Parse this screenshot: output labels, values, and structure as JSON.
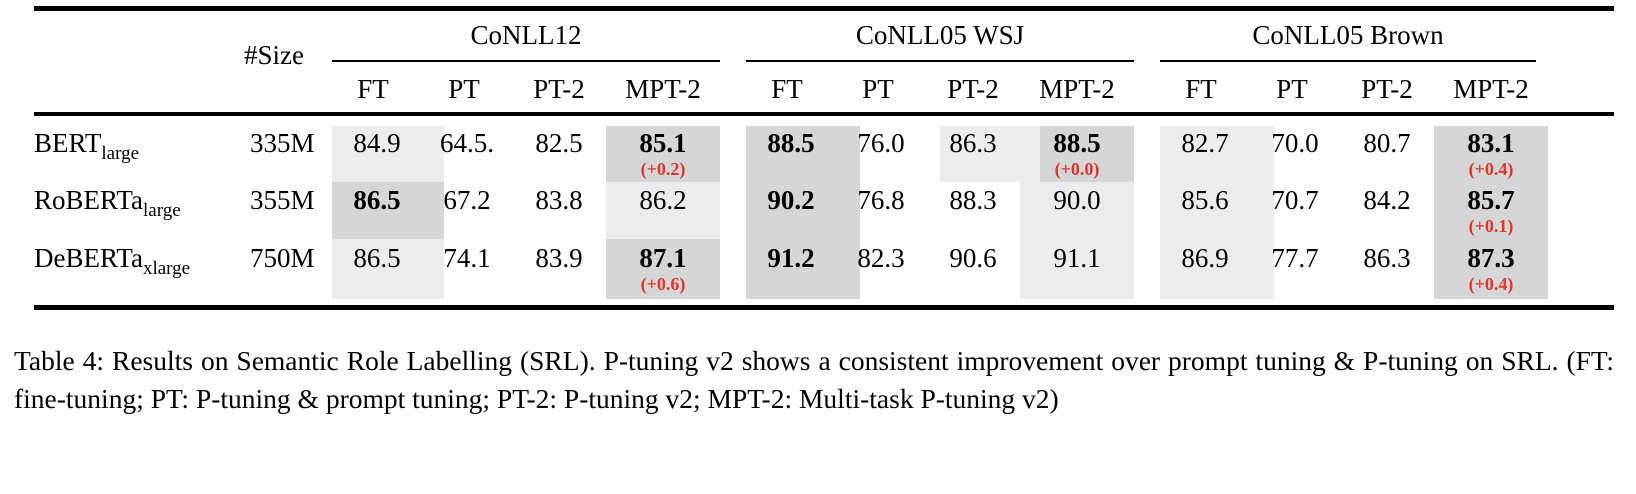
{
  "table": {
    "size_header": "#Size",
    "groups": [
      {
        "name": "CoNLL12",
        "columns": [
          "FT",
          "PT",
          "PT-2",
          "MPT-2"
        ]
      },
      {
        "name": "CoNLL05 WSJ",
        "columns": [
          "FT",
          "PT",
          "PT-2",
          "MPT-2"
        ]
      },
      {
        "name": "CoNLL05 Brown",
        "columns": [
          "FT",
          "PT",
          "PT-2",
          "MPT-2"
        ]
      }
    ],
    "rows": [
      {
        "model": "BERT",
        "model_sub": "large",
        "size": "335M",
        "values": [
          "84.9",
          "64.5.",
          "82.5",
          "85.1",
          "88.5",
          "76.0",
          "86.3",
          "88.5",
          "82.7",
          "70.0",
          "80.7",
          "83.1"
        ],
        "deltas": [
          "",
          "",
          "",
          "(+0.2)",
          "",
          "",
          "",
          "(+0.0)",
          "",
          "",
          "",
          "(+0.4)"
        ]
      },
      {
        "model": "RoBERTa",
        "model_sub": "large",
        "size": "355M",
        "values": [
          "86.5",
          "67.2",
          "83.8",
          "86.2",
          "90.2",
          "76.8",
          "88.3",
          "90.0",
          "85.6",
          "70.7",
          "84.2",
          "85.7"
        ],
        "deltas": [
          "",
          "",
          "",
          "",
          "",
          "",
          "",
          "",
          "",
          "",
          "",
          "(+0.1)"
        ]
      },
      {
        "model": "DeBERTa",
        "model_sub": "xlarge",
        "size": "750M",
        "values": [
          "86.5",
          "74.1",
          "83.9",
          "87.1",
          "91.2",
          "82.3",
          "90.6",
          "91.1",
          "86.9",
          "77.7",
          "86.3",
          "87.3"
        ],
        "deltas": [
          "",
          "",
          "",
          "(+0.6)",
          "",
          "",
          "",
          "",
          "",
          "",
          "",
          "(+0.4)"
        ]
      }
    ]
  },
  "caption": "Table 4: Results on Semantic Role Labelling (SRL). P-tuning v2 shows a consistent improvement over prompt tuning & P-tuning on SRL. (FT: fine-tuning; PT: P-tuning & prompt tuning; PT-2: P-tuning v2; MPT-2: Multi-task P-tuning v2)"
}
